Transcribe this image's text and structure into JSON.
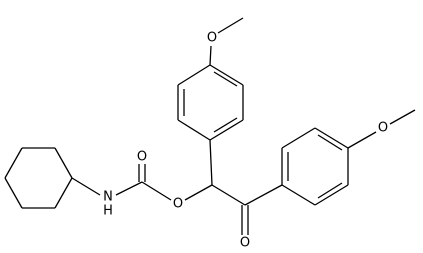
{
  "atoms": {
    "methoxy_top_O": "O",
    "methoxy_right_O": "O",
    "carbonyl_O": "O",
    "ester_O": "O",
    "amide_N": "N",
    "amide_H": "H",
    "ketone_O": "O"
  }
}
